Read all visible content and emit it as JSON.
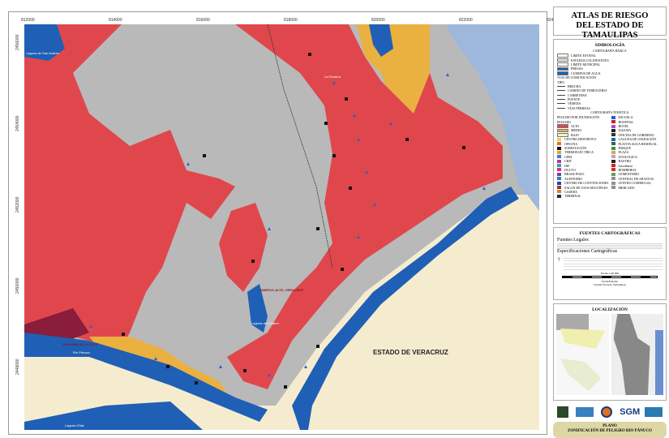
{
  "map": {
    "x_ticks": [
      "812000",
      "814000",
      "816000",
      "818000",
      "820000",
      "822000",
      "824000"
    ],
    "y_ticks": [
      "2456000",
      "2454000",
      "2452000",
      "2450000",
      "2448000"
    ],
    "labels": {
      "state": "ESTADO DE VERACRUZ",
      "tampico_alto": "TAMPICO ALTO, VERACRUZ",
      "moralillo": "EL MORALILLO, S.L.P.",
      "river": "Río Pánuco",
      "lagoon_center": "Laguna del Chairel",
      "lagoon_top": "Laguna de San Andrés",
      "lagoon_bottom": "Laguna Chila",
      "town_top": "La Pedrera"
    },
    "colors": {
      "alto": "#e0474c",
      "medio": "#eab040",
      "bajo": "#f5ecd0",
      "water": "#1f5fb5",
      "sea": "#9db8dc",
      "urban": "#b9b9b9"
    }
  },
  "panel": {
    "title_line1": "ATLAS DE RIESGO",
    "title_line2": "DEL ESTADO DE TAMAULIPAS",
    "legend": {
      "heading": "SIMBOLOGÍA",
      "basic_heading": "CARTOGRAFÍA BÁSICA",
      "basic_items": [
        {
          "label": "LIMITE ESTATAL",
          "color": "#ffffff"
        },
        {
          "label": "ESTADOS COLINDANTES",
          "color": "#f5ecd0"
        },
        {
          "label": "LIMITE MUNICIPAL",
          "color": "#ffffff"
        },
        {
          "label": "PRESAS",
          "color": "#1f5fb5"
        },
        {
          "label": "CUERPOS DE AGUA",
          "color": "#1f5fb5"
        }
      ],
      "roads_heading": "VIAS DE COMUNICACIÓN",
      "roads_type": "TIPO",
      "roads": [
        "BRECHA",
        "CAMINO DE TERRACERIA",
        "CARRETERA",
        "PUENTE",
        "VEREDA",
        "VÍAS FÉRREAS"
      ],
      "thematic_heading": "CARTOGRAFÍA TEMÁTICA",
      "hazard_heading": "PELIGRO POR INUNDACIÓN",
      "hazard_sub": "PELIGRO",
      "hazard": [
        {
          "label": "ALTO",
          "color": "#e0474c"
        },
        {
          "label": "MEDIO",
          "color": "#eab040"
        },
        {
          "label": "BAJO",
          "color": "#f5ecd0"
        }
      ],
      "left_symbols": [
        {
          "label": "CENTRO DEPORTIVO",
          "color": "#e8d060"
        },
        {
          "label": "OFICINA",
          "color": "#e07030"
        },
        {
          "label": "SUBESTACIÓN",
          "color": "#111111"
        },
        {
          "label": "TERMOELÉCTRICA",
          "color": "#e0a030"
        },
        {
          "label": "CERI",
          "color": "#3a7ad0"
        },
        {
          "label": "CRIT",
          "color": "#c030a0"
        },
        {
          "label": "DIF",
          "color": "#30a0c0"
        },
        {
          "label": "DUCTO",
          "color": "#e03060"
        },
        {
          "label": "BRASE POZO",
          "color": "#8040a0"
        },
        {
          "label": "AUDITORIO",
          "color": "#4070c0"
        },
        {
          "label": "CENTRO DE CONVENCIONES",
          "color": "#1050a0"
        },
        {
          "label": "SALON DE USOS MULTIPLES",
          "color": "#a03040"
        },
        {
          "label": "GASERA",
          "color": "#e08020"
        },
        {
          "label": "TERMINAL",
          "color": "#203040"
        }
      ],
      "right_symbols": [
        {
          "label": "ESCUELA",
          "color": "#2060d0"
        },
        {
          "label": "HOSPITAL",
          "color": "#d02020"
        },
        {
          "label": "HOTEL",
          "color": "#c040c0"
        },
        {
          "label": "IGLESIA",
          "color": "#222222"
        },
        {
          "label": "OFICINA DE GOBIERNO",
          "color": "#333333"
        },
        {
          "label": "LAGUNA DE OXIDACIÓN",
          "color": "#1070a0"
        },
        {
          "label": "PLANTA AGUA RESIDUAL",
          "color": "#555555"
        },
        {
          "label": "PARQUE",
          "color": "#20a040"
        },
        {
          "label": "PLAZA",
          "color": "#e0a060"
        },
        {
          "label": "ZOOLOGICO",
          "color": "#c0a0c0"
        },
        {
          "label": "RASTRO",
          "color": "#222222"
        },
        {
          "label": "Gasolinera",
          "color": "#d02020"
        },
        {
          "label": "BOMBEROS",
          "color": "#d03030"
        },
        {
          "label": "CEMENTERIO",
          "color": "#60a060"
        },
        {
          "label": "CENTRAL DE ABASTOS",
          "color": "#909090"
        },
        {
          "label": "CENTRO COMERCIAL",
          "color": "#909090"
        },
        {
          "label": "MERCADO",
          "color": "#909090"
        }
      ]
    },
    "sources": {
      "heading": "FUENTES CARTOGRÁFICAS",
      "legal": "Fuentes Legales",
      "specs": "Especificaciones Cartográficas",
      "scale": "Escala 1:40 000",
      "date_label": "Fecha/Edición",
      "place": "Ciudad Victoria, Tamaulipas"
    },
    "location_heading": "LOCALIZACIÓN",
    "plano_line1": "PLANO",
    "plano_line2": "ZONIFICACIÓN DE PELIGRO RIO PÁNUCO"
  }
}
